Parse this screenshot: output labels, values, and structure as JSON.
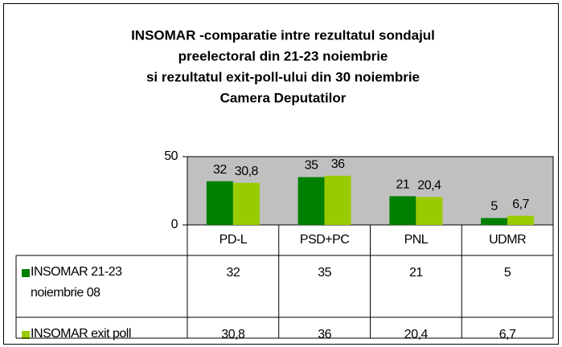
{
  "chart_data": {
    "type": "bar",
    "title": [
      "INSOMAR -comparatie intre rezultatul sondajul",
      "preelectoral din 21-23 noiembrie",
      "si rezultatul exit-poll-ului din 30 noiembrie",
      "Camera Deputatilor"
    ],
    "categories": [
      "PD-L",
      "PSD+PC",
      "PNL",
      "UDMR"
    ],
    "series": [
      {
        "name": "INSOMAR 21-23 noiembrie 08",
        "color": "#008000",
        "values": [
          32,
          35,
          21,
          5
        ]
      },
      {
        "name": "INSOMAR exit poll",
        "color": "#99cc00",
        "values": [
          30.8,
          36,
          20.4,
          6.7
        ],
        "value_labels": [
          "30,8",
          "36",
          "20,4",
          "6,7"
        ]
      }
    ],
    "ylim": [
      0,
      50
    ],
    "yticks": [
      0,
      50
    ],
    "plot_background": "#c0c0c0",
    "data_table": true
  }
}
